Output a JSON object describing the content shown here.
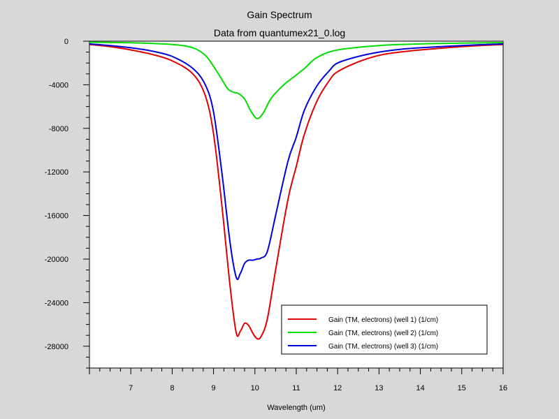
{
  "chart_data": {
    "type": "line",
    "title": "Gain Spectrum",
    "subtitle": "Data from quantumex21_0.log",
    "xlabel": "Wavelength (um)",
    "ylabel": "",
    "xlim": [
      6,
      16
    ],
    "ylim": [
      -30000,
      0
    ],
    "x_ticks": [
      7,
      8,
      9,
      10,
      11,
      12,
      13,
      14,
      15,
      16
    ],
    "y_ticks": [
      0,
      -4000,
      -8000,
      -12000,
      -16000,
      -20000,
      -24000,
      -28000
    ],
    "legend_position": "bottom-right",
    "series": [
      {
        "name": "Gain (TM, electrons) (well 1) (1/cm)",
        "color": "#e00000",
        "x": [
          6.0,
          6.5,
          7.0,
          7.5,
          8.0,
          8.5,
          8.8,
          9.0,
          9.2,
          9.4,
          9.55,
          9.65,
          9.75,
          9.85,
          9.95,
          10.05,
          10.15,
          10.3,
          10.5,
          10.8,
          11.0,
          11.2,
          11.5,
          11.8,
          12.0,
          12.5,
          13.0,
          13.5,
          14.0,
          15.0,
          16.0
        ],
        "y": [
          -300,
          -500,
          -800,
          -1200,
          -1800,
          -3000,
          -5000,
          -8500,
          -15000,
          -22500,
          -26800,
          -26600,
          -25900,
          -26100,
          -26800,
          -27300,
          -27100,
          -25500,
          -21000,
          -14500,
          -11500,
          -8500,
          -5500,
          -3600,
          -2800,
          -1900,
          -1300,
          -1000,
          -800,
          -500,
          -300
        ]
      },
      {
        "name": "Gain (TM, electrons) (well 2) (1/cm)",
        "color": "#00dd00",
        "x": [
          6.0,
          7.0,
          8.0,
          8.5,
          8.8,
          9.0,
          9.2,
          9.35,
          9.5,
          9.6,
          9.75,
          9.9,
          10.05,
          10.2,
          10.4,
          10.7,
          11.0,
          11.2,
          11.5,
          12.0,
          13.0,
          14.0,
          15.0,
          16.0
        ],
        "y": [
          -100,
          -150,
          -300,
          -600,
          -1300,
          -2300,
          -3500,
          -4400,
          -4700,
          -4800,
          -5300,
          -6400,
          -7100,
          -6600,
          -5200,
          -4000,
          -3100,
          -2500,
          -1500,
          -800,
          -400,
          -250,
          -180,
          -130
        ]
      },
      {
        "name": "Gain (TM, electrons) (well 3) (1/cm)",
        "color": "#0000dd",
        "x": [
          6.0,
          6.5,
          7.0,
          7.5,
          8.0,
          8.5,
          8.8,
          9.0,
          9.2,
          9.4,
          9.55,
          9.65,
          9.75,
          9.85,
          9.95,
          10.05,
          10.15,
          10.3,
          10.5,
          10.8,
          11.0,
          11.2,
          11.5,
          11.8,
          12.0,
          12.5,
          13.0,
          13.5,
          14.0,
          15.0,
          16.0
        ],
        "y": [
          -250,
          -400,
          -600,
          -900,
          -1400,
          -2500,
          -4000,
          -6500,
          -12000,
          -18500,
          -21700,
          -21300,
          -20400,
          -20100,
          -20100,
          -20000,
          -19900,
          -19300,
          -16000,
          -11000,
          -8800,
          -6300,
          -4100,
          -2700,
          -2000,
          -1400,
          -1000,
          -750,
          -600,
          -400,
          -250
        ]
      }
    ]
  }
}
